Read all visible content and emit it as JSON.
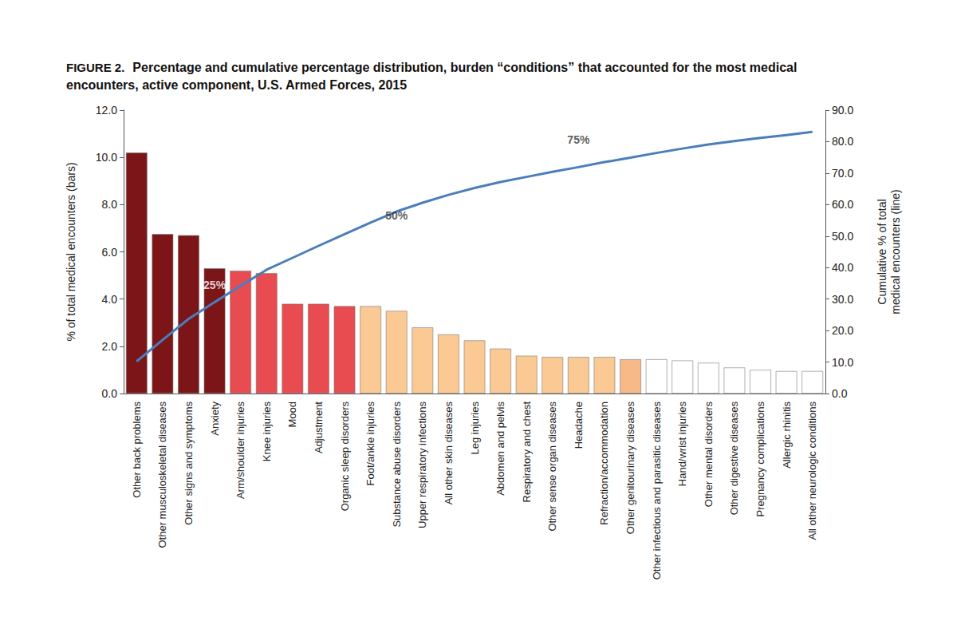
{
  "chart_data": {
    "type": "bar",
    "title": "FIGURE 2. Percentage and cumulative percentage distribution, burden “conditions” that accounted for the most medical encounters, active component, U.S. Armed Forces, 2015",
    "y_label": "% of total medical encounters (bars)",
    "y2_label": "Cumulative % of total\nmedical encounters (line)",
    "categories": [
      "Other back problems",
      "Other musculoskeletal diseases",
      "Other signs and symptoms",
      "Anxiety",
      "Arm/shoulder injuries",
      "Knee injuries",
      "Mood",
      "Adjustment",
      "Organic sleep disorders",
      "Foot/ankle injuries",
      "Substance abuse disorders",
      "Upper respiratory infections",
      "All other skin diseases",
      "Leg injuries",
      "Abdomen and pelvis",
      "Respiratory and chest",
      "Other sense organ diseases",
      "Headache",
      "Refraction/accommodation",
      "Other genitourinary diseases",
      "Other infectious and parasitic diseases",
      "Hand/wrist injuries",
      "Other mental disorders",
      "Other digestive diseases",
      "Pregnancy complications",
      "Allergic rhinitis",
      "All other neurologic conditions"
    ],
    "series": [
      {
        "name": "% of total medical encounters",
        "type": "bar",
        "values": [
          10.2,
          6.75,
          6.7,
          5.3,
          5.2,
          5.1,
          3.8,
          3.8,
          3.7,
          3.7,
          3.5,
          2.8,
          2.5,
          2.25,
          1.9,
          1.6,
          1.55,
          1.55,
          1.55,
          1.45,
          1.45,
          1.4,
          1.3,
          1.1,
          1.0,
          0.95,
          0.95
        ],
        "colors": [
          "#7b1518",
          "#7b1518",
          "#7b1518",
          "#7b1518",
          "#e84b50",
          "#e84b50",
          "#e84b50",
          "#e84b50",
          "#e84b50",
          "#fbc993",
          "#fbc993",
          "#fbc993",
          "#fbc993",
          "#fbc993",
          "#fbc993",
          "#fbc993",
          "#fbc993",
          "#fbc993",
          "#fbc993",
          "#f6b987",
          "#ffffff",
          "#ffffff",
          "#ffffff",
          "#ffffff",
          "#ffffff",
          "#ffffff",
          "#ffffff"
        ]
      },
      {
        "name": "Cumulative % of total medical encounters",
        "type": "line",
        "axis": "y2",
        "color": "#4a7ebb",
        "values": [
          10.2,
          17.0,
          23.7,
          29.0,
          34.2,
          39.3,
          43.1,
          46.9,
          50.6,
          54.3,
          57.8,
          60.6,
          63.1,
          65.3,
          67.2,
          68.8,
          70.4,
          71.9,
          73.5,
          74.9,
          76.4,
          77.8,
          79.1,
          80.2,
          81.2,
          82.1,
          83.1
        ]
      }
    ],
    "annotations": [
      {
        "text": "25%",
        "category": "Anxiety",
        "axis": "y2",
        "y": 34.5,
        "color": "#ffffff"
      },
      {
        "text": "50%",
        "category": "Substance abuse disorders",
        "axis": "y2",
        "y": 56.5,
        "color": "#333333"
      },
      {
        "text": "75%",
        "category": "Headache",
        "axis": "y2",
        "y": 80.5,
        "color": "#333333"
      }
    ],
    "ylim": [
      0,
      12
    ],
    "yticks": [
      {
        "value": 0,
        "label": "0.0"
      },
      {
        "value": 2,
        "label": "2.0"
      },
      {
        "value": 4,
        "label": "4.0"
      },
      {
        "value": 6,
        "label": "6.0"
      },
      {
        "value": 8,
        "label": "8.0"
      },
      {
        "value": 10,
        "label": "10.0"
      },
      {
        "value": 12,
        "label": "12.0"
      }
    ],
    "y2lim": [
      0,
      90
    ],
    "y2ticks": [
      {
        "value": 0,
        "label": "0.0"
      },
      {
        "value": 10,
        "label": "10.0"
      },
      {
        "value": 20,
        "label": "20.0"
      },
      {
        "value": 30,
        "label": "30.0"
      },
      {
        "value": 40,
        "label": "40.0"
      },
      {
        "value": 50,
        "label": "50.0"
      },
      {
        "value": 60,
        "label": "60.0"
      },
      {
        "value": 70,
        "label": "70.0"
      },
      {
        "value": 80,
        "label": "80.0"
      },
      {
        "value": 90,
        "label": "90.0"
      }
    ],
    "grid": false,
    "legend": false
  }
}
